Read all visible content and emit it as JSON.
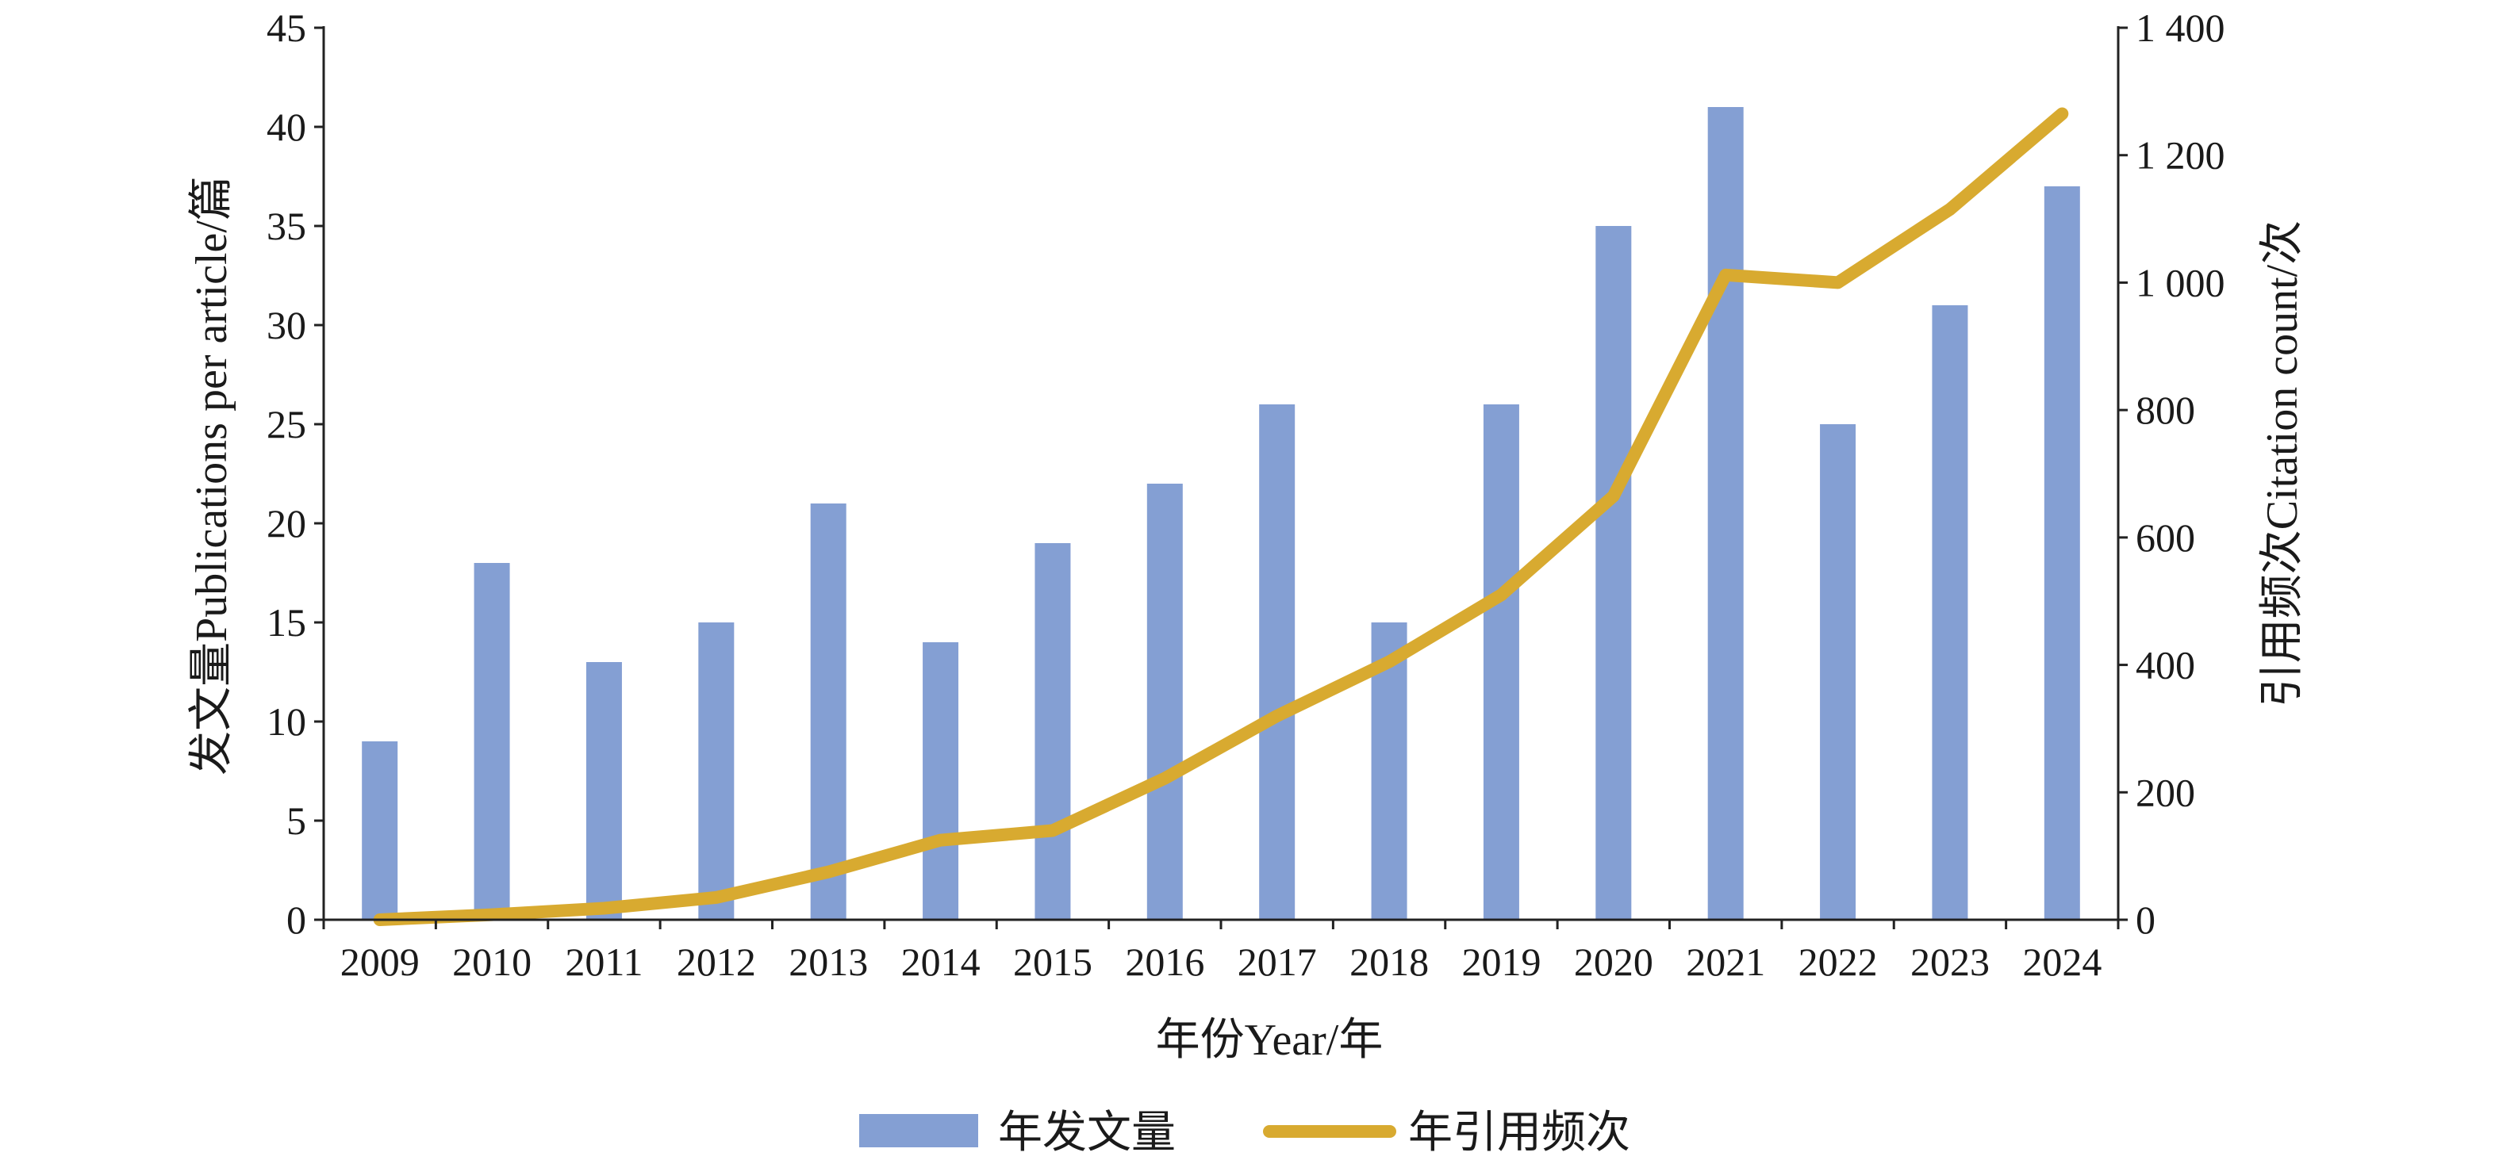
{
  "chart_data": {
    "type": "bar+line",
    "categories": [
      "2009",
      "2010",
      "2011",
      "2012",
      "2013",
      "2014",
      "2015",
      "2016",
      "2017",
      "2018",
      "2019",
      "2020",
      "2021",
      "2022",
      "2023",
      "2024"
    ],
    "series": [
      {
        "name": "年发文量",
        "type": "bar",
        "axis": "left",
        "color": "#849fd3",
        "values": [
          9,
          18,
          13,
          15,
          21,
          14,
          19,
          22,
          26,
          15,
          26,
          35,
          41,
          25,
          31,
          37
        ]
      },
      {
        "name": "年引用频次",
        "type": "line",
        "axis": "right",
        "color": "#d8aa30",
        "values": [
          0,
          8,
          18,
          35,
          75,
          125,
          140,
          222,
          320,
          405,
          510,
          665,
          1012,
          1000,
          1115,
          1265
        ]
      }
    ],
    "xlabel": "年份Year/年",
    "ylabel_left": "发文量Publications per article/篇",
    "ylabel_right": "引用频次Citation count/次",
    "ylim_left": [
      0,
      45
    ],
    "ylim_right": [
      0,
      1400
    ],
    "yticks_left": [
      "0",
      "5",
      "10",
      "15",
      "20",
      "25",
      "30",
      "35",
      "40",
      "45"
    ],
    "yticks_right": [
      "0",
      "200",
      "400",
      "600",
      "800",
      "1 000",
      "1 200",
      "1 400"
    ],
    "grid": false,
    "legend_position": "bottom"
  }
}
